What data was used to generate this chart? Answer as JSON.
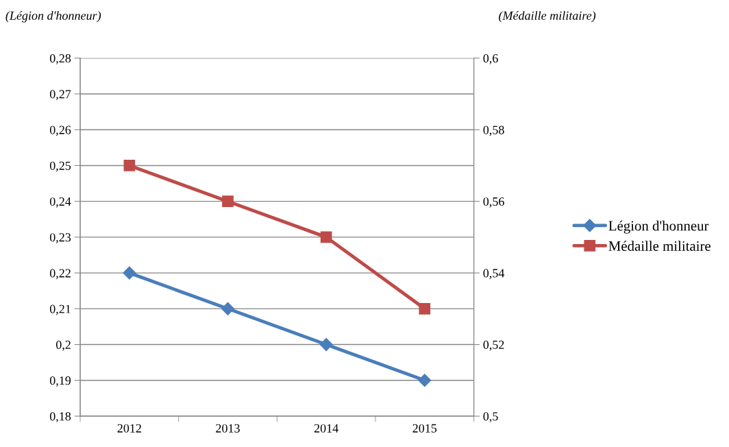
{
  "chart_data": {
    "type": "line",
    "ylabel": "(Légion d'honneur)",
    "y2label": "(Médaille militaire)",
    "categories": [
      "2012",
      "2013",
      "2014",
      "2015"
    ],
    "series": [
      {
        "name": "Légion d'honneur",
        "color": "#4a7ebb",
        "marker": "diamond",
        "values": [
          0.22,
          0.21,
          0.2,
          0.19
        ]
      },
      {
        "name": "Médaille militaire",
        "color": "#be4b48",
        "marker": "square",
        "axis": "y2",
        "values": [
          0.57,
          0.56,
          0.55,
          0.53
        ]
      }
    ],
    "ylim": [
      0.18,
      0.28
    ],
    "yticks": [
      {
        "value": 0.18,
        "label": "0,18"
      },
      {
        "value": 0.19,
        "label": "0,19"
      },
      {
        "value": 0.2,
        "label": "0,2"
      },
      {
        "value": 0.21,
        "label": "0,21"
      },
      {
        "value": 0.22,
        "label": "0,22"
      },
      {
        "value": 0.23,
        "label": "0,23"
      },
      {
        "value": 0.24,
        "label": "0,24"
      },
      {
        "value": 0.25,
        "label": "0,25"
      },
      {
        "value": 0.26,
        "label": "0,26"
      },
      {
        "value": 0.27,
        "label": "0,27"
      },
      {
        "value": 0.28,
        "label": "0,28"
      }
    ],
    "y2lim": [
      0.5,
      0.6
    ],
    "y2ticks": [
      {
        "value": 0.5,
        "label": "0,5"
      },
      {
        "value": 0.52,
        "label": "0,52"
      },
      {
        "value": 0.54,
        "label": "0,54"
      },
      {
        "value": 0.56,
        "label": "0,56"
      },
      {
        "value": 0.58,
        "label": "0,58"
      },
      {
        "value": 0.6,
        "label": "0,6"
      }
    ],
    "grid": "y",
    "legend": "right",
    "line_style": "solid"
  }
}
